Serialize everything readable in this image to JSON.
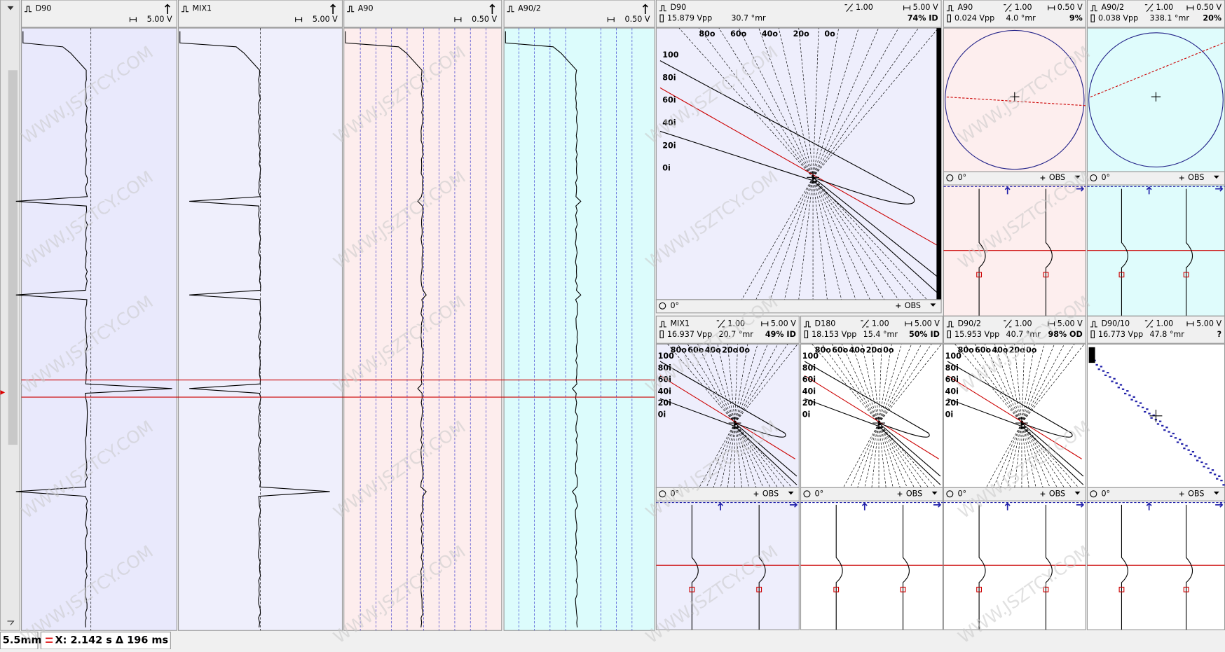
{
  "watermark": "WWW.JSZTCY.COM",
  "strip_panels": [
    {
      "channel": "D90",
      "scale": "5.00 V"
    },
    {
      "channel": "MIX1",
      "scale": "5.00 V"
    },
    {
      "channel": "A90",
      "scale": "0.50 V"
    },
    {
      "channel": "A90/2",
      "scale": "0.50 V"
    }
  ],
  "lissajous_panels": [
    {
      "channel": "D90",
      "gain": "1.00",
      "scale": "5.00 V",
      "vpp": "15.879 Vpp",
      "angle": "30.7 °mr",
      "result": "74% ID",
      "scale_outer": [
        "80o",
        "60o",
        "40o",
        "20o",
        "0o"
      ],
      "scale_inner": [
        "100",
        "80i",
        "60i",
        "40i",
        "20i",
        "0i"
      ],
      "rotation": "0°",
      "mode": "OBS"
    },
    {
      "channel": "A90",
      "gain": "1.00",
      "scale": "0.50 V",
      "vpp": "0.024 Vpp",
      "angle": "4.0 °mr",
      "result": "9%",
      "rotation": "0°",
      "mode": "OBS"
    },
    {
      "channel": "A90/2",
      "gain": "1.00",
      "scale": "0.50 V",
      "vpp": "0.038 Vpp",
      "angle": "338.1 °mr",
      "result": "20%",
      "rotation": "0°",
      "mode": "OBS"
    },
    {
      "channel": "MIX1",
      "gain": "1.00",
      "scale": "5.00 V",
      "vpp": "16.937 Vpp",
      "angle": "20.7 °mr",
      "result": "49% ID",
      "scale_outer": [
        "80o",
        "60o",
        "40o",
        "20o",
        "0o"
      ],
      "scale_inner": [
        "100",
        "80i",
        "60i",
        "40i",
        "20i",
        "0i"
      ],
      "rotation": "0°",
      "mode": "OBS"
    },
    {
      "channel": "D180",
      "gain": "1.00",
      "scale": "5.00 V",
      "vpp": "18.153 Vpp",
      "angle": "15.4 °mr",
      "result": "50% ID",
      "scale_outer": [
        "80o",
        "60o",
        "40o",
        "20o",
        "0o"
      ],
      "scale_inner": [
        "100",
        "80i",
        "60i",
        "40i",
        "20i",
        "0i"
      ],
      "rotation": "0°",
      "mode": "OBS"
    },
    {
      "channel": "D90/2",
      "gain": "1.00",
      "scale": "5.00 V",
      "vpp": "15.953 Vpp",
      "angle": "40.7 °mr",
      "result": "98% OD",
      "scale_outer": [
        "80o",
        "60o",
        "40o",
        "20o",
        "0o"
      ],
      "scale_inner": [
        "100",
        "80i",
        "60i",
        "40i",
        "20i",
        "0i"
      ],
      "rotation": "0°",
      "mode": "OBS"
    },
    {
      "channel": "D90/10",
      "gain": "1.00",
      "scale": "5.00 V",
      "vpp": "16.773 Vpp",
      "angle": "47.8 °mr",
      "result": "?",
      "rotation": "0°",
      "mode": "OBS"
    }
  ],
  "status_bar": {
    "position": "5.5mm",
    "cursor": "X: 2.142 s Δ 196 ms"
  }
}
